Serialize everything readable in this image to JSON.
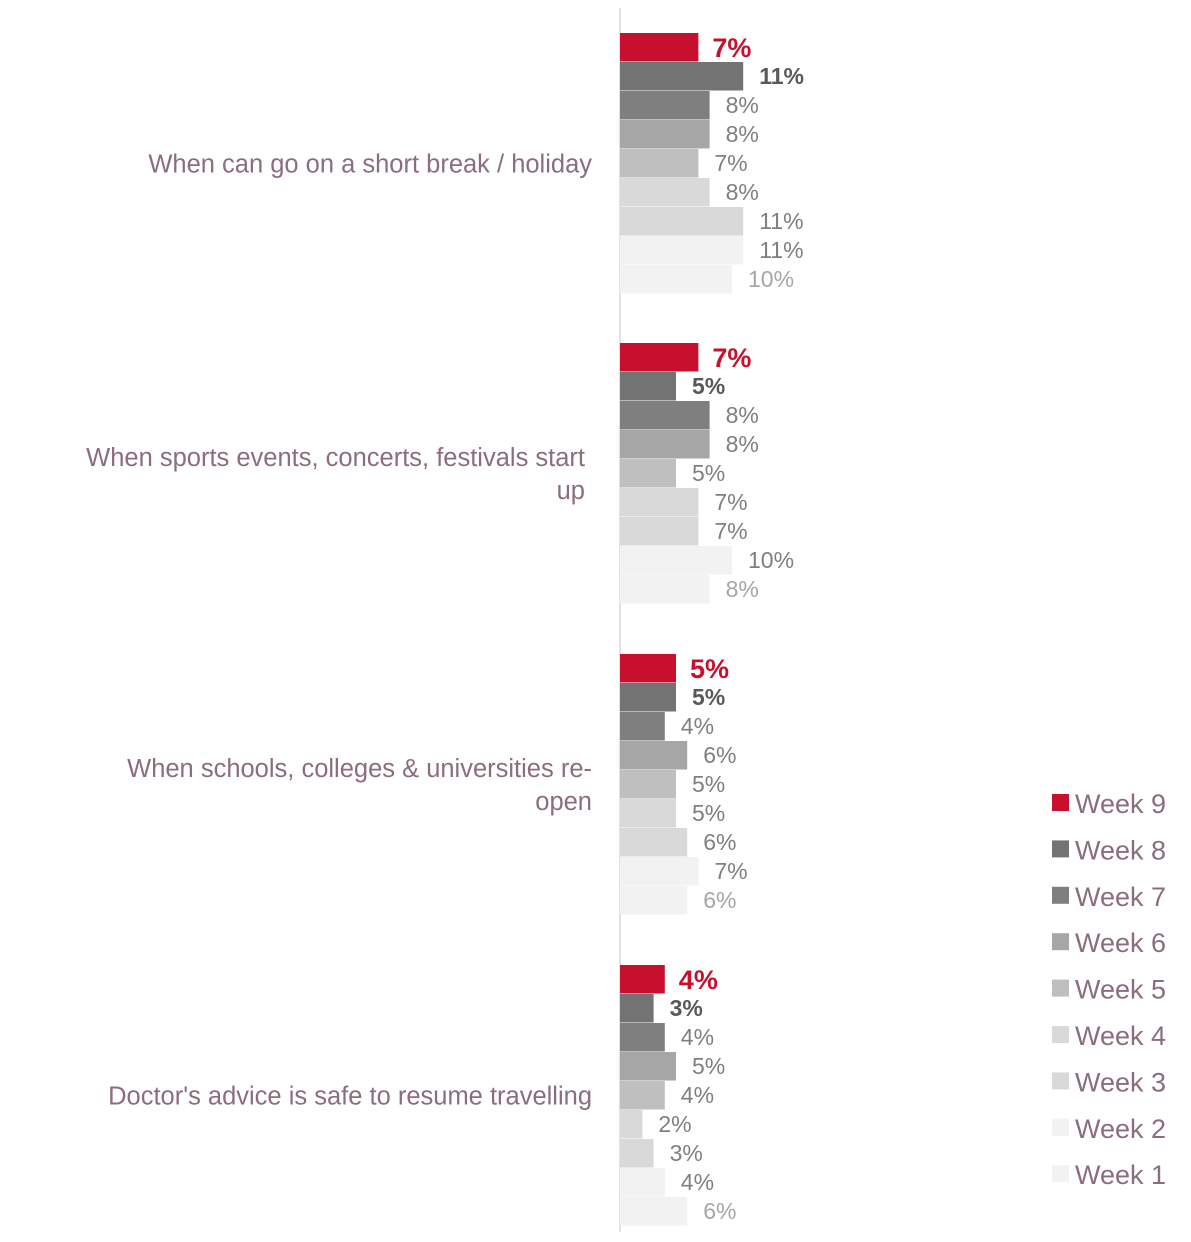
{
  "chart_data": {
    "type": "bar",
    "orientation": "horizontal",
    "categories": [
      "When can go on a short break / holiday",
      "When sports events, concerts, festivals start up",
      "When schools, colleges & universities re-open",
      "Doctor's advice is safe to resume travelling"
    ],
    "series": [
      {
        "name": "Week 9",
        "color": "#c8102e",
        "values": [
          7,
          7,
          5,
          4
        ]
      },
      {
        "name": "Week 8",
        "color": "#737373",
        "values": [
          11,
          5,
          5,
          3
        ]
      },
      {
        "name": "Week 7",
        "color": "#7f7f7f",
        "values": [
          8,
          8,
          4,
          4
        ]
      },
      {
        "name": "Week 6",
        "color": "#a6a6a6",
        "values": [
          8,
          8,
          6,
          5
        ]
      },
      {
        "name": "Week 5",
        "color": "#bfbfbf",
        "values": [
          7,
          5,
          5,
          4
        ]
      },
      {
        "name": "Week 4",
        "color": "#d9d9d9",
        "values": [
          8,
          7,
          5,
          2
        ]
      },
      {
        "name": "Week 3",
        "color": "#d9d9d9",
        "values": [
          11,
          7,
          6,
          3
        ]
      },
      {
        "name": "Week 2",
        "color": "#f2f2f2",
        "values": [
          11,
          10,
          7,
          4
        ]
      },
      {
        "name": "Week 1",
        "color": "#f2f2f2",
        "values": [
          10,
          8,
          6,
          6
        ]
      }
    ],
    "label_colors": [
      "#c8102e",
      "#595959",
      "#7f7f7f",
      "#7f7f7f",
      "#7f7f7f",
      "#7f7f7f",
      "#7f7f7f",
      "#7f7f7f",
      "#a6a6a6"
    ],
    "value_suffix": "%",
    "category_label_color": "#8c6d7f",
    "legend_text_color": "#8c6d7f",
    "legend_position": "right",
    "grid": false
  }
}
